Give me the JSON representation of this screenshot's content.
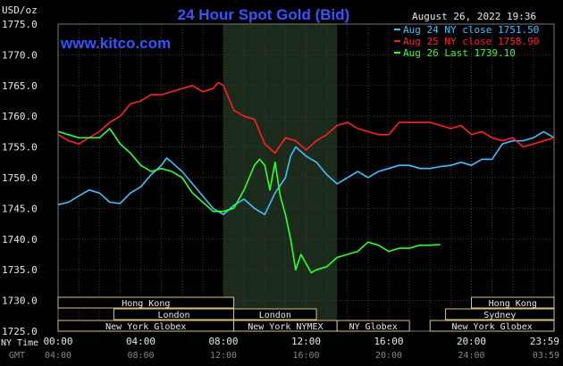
{
  "chart_data": {
    "type": "line",
    "title": "24 Hour Spot Gold (Bid)",
    "timestamp": "August 26, 2022 19:36",
    "watermark": "www.kitco.com",
    "ylabel": "USD/oz",
    "ylim": [
      1725.0,
      1775.0
    ],
    "y_ticks": [
      "1775.0",
      "1770.0",
      "1765.0",
      "1760.0",
      "1755.0",
      "1750.0",
      "1745.0",
      "1740.0",
      "1735.0",
      "1730.0",
      "1725.0"
    ],
    "xlim": [
      0,
      24
    ],
    "x_axis": {
      "row1_label": "NY Time",
      "row2_label": "GMT",
      "ticks_ny": [
        "00:00",
        "04:00",
        "08:00",
        "12:00",
        "16:00",
        "20:00",
        "23:59"
      ],
      "ticks_gmt": [
        "04:00",
        "08:00",
        "12:00",
        "16:00",
        "20:00",
        "24:00",
        "03:59"
      ],
      "tick_hours": [
        0,
        4,
        8,
        12,
        16,
        20,
        23.98
      ]
    },
    "shaded_region_hours": [
      8.0,
      13.5
    ],
    "grid": true,
    "legend_position": "top-right",
    "series": [
      {
        "name": "Aug 24 NY close 1751.50",
        "color": "#3fc0ff",
        "points": [
          [
            0,
            1745.6
          ],
          [
            0.5,
            1746.0
          ],
          [
            1,
            1747.0
          ],
          [
            1.5,
            1748.0
          ],
          [
            2,
            1747.5
          ],
          [
            2.5,
            1746.0
          ],
          [
            3,
            1745.8
          ],
          [
            3.5,
            1747.5
          ],
          [
            4,
            1748.5
          ],
          [
            4.5,
            1750.5
          ],
          [
            5,
            1752.0
          ],
          [
            5.25,
            1753.2
          ],
          [
            5.5,
            1752.5
          ],
          [
            6,
            1751.0
          ],
          [
            6.5,
            1749.0
          ],
          [
            7,
            1747.0
          ],
          [
            7.5,
            1745.0
          ],
          [
            8,
            1744.0
          ],
          [
            8.5,
            1745.5
          ],
          [
            9,
            1746.5
          ],
          [
            9.5,
            1745.0
          ],
          [
            10,
            1744.0
          ],
          [
            10.5,
            1747.5
          ],
          [
            11,
            1750.0
          ],
          [
            11.25,
            1753.5
          ],
          [
            11.5,
            1755.0
          ],
          [
            12,
            1753.5
          ],
          [
            12.5,
            1752.5
          ],
          [
            13,
            1750.5
          ],
          [
            13.5,
            1749.0
          ],
          [
            14,
            1750.0
          ],
          [
            14.5,
            1751.0
          ],
          [
            15,
            1750.0
          ],
          [
            15.5,
            1751.0
          ],
          [
            16,
            1751.5
          ],
          [
            16.5,
            1752.0
          ],
          [
            17,
            1752.0
          ],
          [
            17.5,
            1751.5
          ],
          [
            18,
            1751.5
          ],
          [
            18.5,
            1751.8
          ],
          [
            19,
            1752.0
          ],
          [
            19.5,
            1752.5
          ],
          [
            20,
            1752.0
          ],
          [
            20.5,
            1753.0
          ],
          [
            21,
            1753.0
          ],
          [
            21.5,
            1755.5
          ],
          [
            22,
            1756.0
          ],
          [
            22.5,
            1756.0
          ],
          [
            23,
            1756.5
          ],
          [
            23.5,
            1757.5
          ],
          [
            24,
            1756.5
          ]
        ]
      },
      {
        "name": "Aug 25 NY close 1758.90",
        "color": "#ff2020",
        "points": [
          [
            0,
            1757.0
          ],
          [
            0.5,
            1756.0
          ],
          [
            1,
            1755.5
          ],
          [
            1.5,
            1756.5
          ],
          [
            2,
            1757.5
          ],
          [
            2.5,
            1759.0
          ],
          [
            3,
            1760.0
          ],
          [
            3.5,
            1762.0
          ],
          [
            4,
            1762.5
          ],
          [
            4.5,
            1763.5
          ],
          [
            5,
            1763.5
          ],
          [
            5.5,
            1764.0
          ],
          [
            6,
            1764.5
          ],
          [
            6.5,
            1765.0
          ],
          [
            7,
            1764.0
          ],
          [
            7.5,
            1764.5
          ],
          [
            7.75,
            1765.5
          ],
          [
            8,
            1765.0
          ],
          [
            8.5,
            1761.0
          ],
          [
            9,
            1760.0
          ],
          [
            9.5,
            1759.5
          ],
          [
            10,
            1755.5
          ],
          [
            10.5,
            1754.0
          ],
          [
            11,
            1756.5
          ],
          [
            11.5,
            1756.0
          ],
          [
            12,
            1754.5
          ],
          [
            12.5,
            1756.0
          ],
          [
            13,
            1757.0
          ],
          [
            13.5,
            1758.5
          ],
          [
            14,
            1759.0
          ],
          [
            14.5,
            1758.0
          ],
          [
            15,
            1757.5
          ],
          [
            15.5,
            1757.0
          ],
          [
            16,
            1757.0
          ],
          [
            16.5,
            1759.0
          ],
          [
            17,
            1759.0
          ],
          [
            17.5,
            1759.0
          ],
          [
            18,
            1759.0
          ],
          [
            18.5,
            1758.5
          ],
          [
            19,
            1758.0
          ],
          [
            19.5,
            1758.5
          ],
          [
            20,
            1757.0
          ],
          [
            20.5,
            1757.5
          ],
          [
            21,
            1756.5
          ],
          [
            21.5,
            1756.0
          ],
          [
            22,
            1756.5
          ],
          [
            22.5,
            1755.0
          ],
          [
            23,
            1755.5
          ],
          [
            23.5,
            1756.0
          ],
          [
            24,
            1756.5
          ]
        ]
      },
      {
        "name": "Aug 26 Last 1739.10",
        "color": "#30ff30",
        "points": [
          [
            0,
            1757.5
          ],
          [
            0.5,
            1757.0
          ],
          [
            1,
            1756.5
          ],
          [
            1.5,
            1756.5
          ],
          [
            2,
            1756.5
          ],
          [
            2.5,
            1758.0
          ],
          [
            3,
            1755.5
          ],
          [
            3.5,
            1754.0
          ],
          [
            4,
            1752.0
          ],
          [
            4.5,
            1751.0
          ],
          [
            5,
            1751.5
          ],
          [
            5.5,
            1751.0
          ],
          [
            6,
            1750.0
          ],
          [
            6.5,
            1747.5
          ],
          [
            7,
            1746.0
          ],
          [
            7.5,
            1744.5
          ],
          [
            8,
            1744.5
          ],
          [
            8.5,
            1745.0
          ],
          [
            9,
            1748.0
          ],
          [
            9.25,
            1750.0
          ],
          [
            9.5,
            1752.0
          ],
          [
            9.75,
            1753.0
          ],
          [
            10,
            1752.0
          ],
          [
            10.25,
            1748.0
          ],
          [
            10.5,
            1752.5
          ],
          [
            10.75,
            1747.0
          ],
          [
            11,
            1744.0
          ],
          [
            11.25,
            1740.0
          ],
          [
            11.5,
            1735.0
          ],
          [
            11.75,
            1737.5
          ],
          [
            12,
            1736.0
          ],
          [
            12.25,
            1734.5
          ],
          [
            12.5,
            1735.0
          ],
          [
            13,
            1735.5
          ],
          [
            13.5,
            1737.0
          ],
          [
            14,
            1737.5
          ],
          [
            14.5,
            1738.0
          ],
          [
            15,
            1739.5
          ],
          [
            15.5,
            1739.0
          ],
          [
            16,
            1738.0
          ],
          [
            16.5,
            1738.5
          ],
          [
            17,
            1738.5
          ],
          [
            17.5,
            1739.0
          ],
          [
            18,
            1739.0
          ],
          [
            18.5,
            1739.1
          ]
        ]
      }
    ],
    "sessions": [
      {
        "label": "Hong Kong",
        "start_h": 0,
        "end_h": 8.5,
        "row": 0
      },
      {
        "label": "London",
        "start_h": 2.7,
        "end_h": 8.5,
        "row": 1
      },
      {
        "label": "New York Globex",
        "start_h": 0,
        "end_h": 8.5,
        "row": 2
      },
      {
        "label": "London",
        "start_h": 8.5,
        "end_h": 12.5,
        "row": 1
      },
      {
        "label": "New York NYMEX",
        "start_h": 8.5,
        "end_h": 13.5,
        "row": 2
      },
      {
        "label": "NY Globex",
        "start_h": 13.5,
        "end_h": 17.0,
        "row": 2
      },
      {
        "label": "Hong Kong",
        "start_h": 20.0,
        "end_h": 24,
        "row": 0
      },
      {
        "label": "Sydney",
        "start_h": 18.75,
        "end_h": 24,
        "row": 1
      },
      {
        "label": "New York Globex",
        "start_h": 18.0,
        "end_h": 24,
        "row": 2
      }
    ]
  }
}
